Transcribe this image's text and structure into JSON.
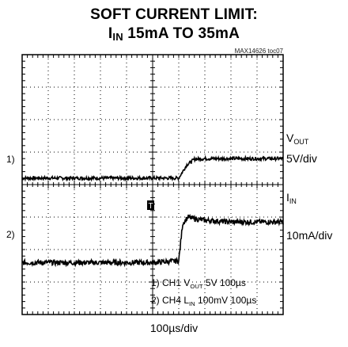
{
  "title_line1": "SOFT CURRENT LIMIT:",
  "title_line2_prefix": "I",
  "title_line2_sub": "IN",
  "title_line2_rest": " 15mA TO 35mA",
  "figure_id": "MAX14626 toc07",
  "channels": {
    "vout": {
      "marker": "1)",
      "label_main": "V",
      "label_sub": "OUT",
      "scale": "5V/div"
    },
    "iin": {
      "marker": "2)",
      "label_main": "I",
      "label_sub": "IN",
      "scale": "10mA/div"
    }
  },
  "notes": {
    "line1_a": "1) CH1 V",
    "line1_sub": "OUT",
    "line1_b": " 5V 100µs",
    "line2_a": "2) CH4 L",
    "line2_sub": "IN",
    "line2_b": " 100mV 100µs"
  },
  "xlabel": "100µs/div",
  "trigger_marker": "T",
  "chart_data": {
    "type": "line",
    "title": "SOFT CURRENT LIMIT: IIN 15mA TO 35mA",
    "xlabel": "100µs/div",
    "x_divisions": 10,
    "y_divisions": 8,
    "grid": true,
    "x_unit": "div",
    "series": [
      {
        "name": "VOUT",
        "scale": "5V/div",
        "x": [
          0,
          1,
          2,
          3,
          4,
          5,
          6,
          6.3,
          6.6,
          7,
          8,
          9,
          10
        ],
        "y": [
          4.2,
          4.2,
          4.2,
          4.2,
          4.2,
          4.2,
          4.2,
          4.6,
          4.78,
          4.8,
          4.8,
          4.8,
          4.8
        ]
      },
      {
        "name": "IIN",
        "scale": "10mA/div",
        "x": [
          0,
          1,
          2,
          3,
          4,
          5,
          6,
          6.15,
          6.35,
          6.6,
          7,
          8,
          9,
          10
        ],
        "y": [
          1.6,
          1.6,
          1.6,
          1.6,
          1.6,
          1.6,
          1.65,
          2.8,
          3.0,
          2.95,
          2.9,
          2.85,
          2.85,
          2.85
        ]
      }
    ]
  }
}
